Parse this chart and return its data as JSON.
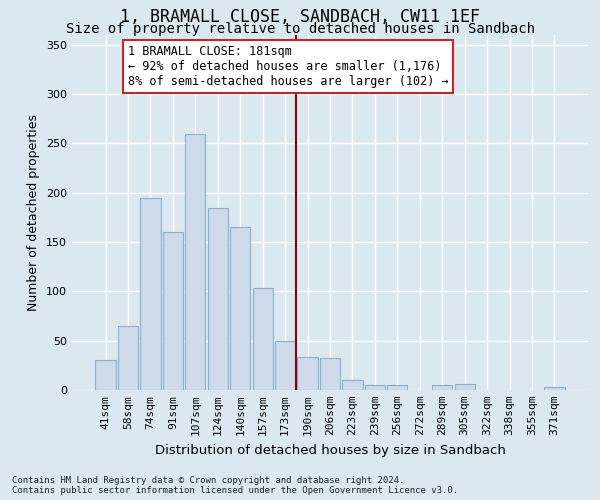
{
  "title": "1, BRAMALL CLOSE, SANDBACH, CW11 1EF",
  "subtitle": "Size of property relative to detached houses in Sandbach",
  "xlabel": "Distribution of detached houses by size in Sandbach",
  "ylabel": "Number of detached properties",
  "categories": [
    "41sqm",
    "58sqm",
    "74sqm",
    "91sqm",
    "107sqm",
    "124sqm",
    "140sqm",
    "157sqm",
    "173sqm",
    "190sqm",
    "206sqm",
    "223sqm",
    "239sqm",
    "256sqm",
    "272sqm",
    "289sqm",
    "305sqm",
    "322sqm",
    "338sqm",
    "355sqm",
    "371sqm"
  ],
  "values": [
    30,
    65,
    195,
    160,
    260,
    185,
    165,
    103,
    50,
    33,
    32,
    10,
    5,
    5,
    0,
    5,
    6,
    0,
    0,
    0,
    3
  ],
  "bar_color": "#ccdaea",
  "bar_edge_color": "#8ab0cc",
  "vline_x_index": 8.5,
  "vline_color": "#8b0000",
  "annotation_text": "1 BRAMALL CLOSE: 181sqm\n← 92% of detached houses are smaller (1,176)\n8% of semi-detached houses are larger (102) →",
  "annotation_box_facecolor": "#ffffff",
  "annotation_box_edgecolor": "#cc2222",
  "ylim": [
    0,
    360
  ],
  "yticks": [
    0,
    50,
    100,
    150,
    200,
    250,
    300,
    350
  ],
  "fig_bg_color": "#dce8f0",
  "ax_bg_color": "#dce8f0",
  "grid_color": "#ffffff",
  "footer_line1": "Contains HM Land Registry data © Crown copyright and database right 2024.",
  "footer_line2": "Contains public sector information licensed under the Open Government Licence v3.0.",
  "title_fontsize": 12,
  "subtitle_fontsize": 10,
  "xlabel_fontsize": 9.5,
  "ylabel_fontsize": 9,
  "tick_fontsize": 8,
  "annotation_fontsize": 8.5,
  "footer_fontsize": 6.5
}
